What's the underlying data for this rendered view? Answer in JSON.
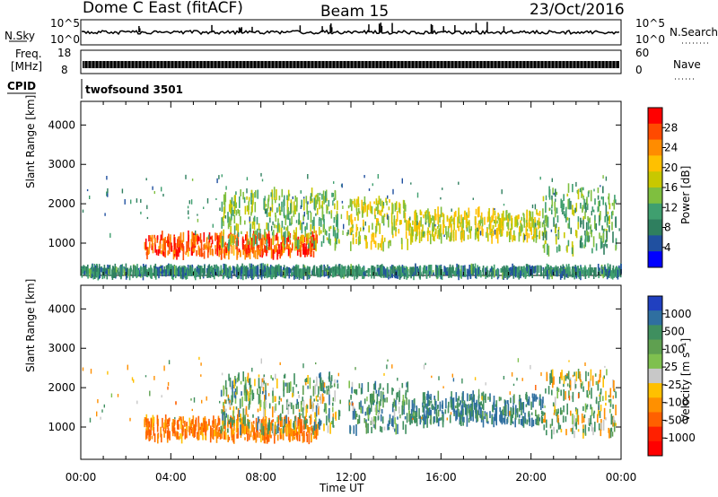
{
  "header": {
    "station": "Dome C East (fitACF)",
    "beam": "Beam 15",
    "date": "23/Oct/2016"
  },
  "top_panels": {
    "nsky_label": "N.Sky",
    "nsky_ticks": [
      "10^5",
      "10^0"
    ],
    "nsearch_label": "N.Search",
    "nsearch_ticks": [
      "10^5",
      "10^0"
    ],
    "freq_label_1": "Freq.",
    "freq_label_2": "[MHz]",
    "freq_ticks": [
      "18",
      "8"
    ],
    "nave_label": "Nave",
    "nave_ticks": [
      "60",
      "0"
    ],
    "cpid_label": "CPID",
    "cpid_value": "twofsound 3501"
  },
  "power_colorbar": {
    "label": "Power [dB]",
    "ticks": [
      "28",
      "24",
      "20",
      "16",
      "12",
      "8",
      "4"
    ],
    "colors": [
      "#ff0000",
      "#ff4a00",
      "#ff8c00",
      "#ffc000",
      "#c8c800",
      "#7fbf3f",
      "#3f9f6f",
      "#2f7f5f",
      "#2050a0",
      "#0000ff"
    ]
  },
  "velocity_colorbar": {
    "label": "Velocity [m s⁻¹]",
    "ticks": [
      "1000",
      "500",
      "100",
      "25",
      "-25",
      "-100",
      "-500",
      "-1000"
    ],
    "colors": [
      "#2040c0",
      "#2f6fa0",
      "#3f8f5f",
      "#5fa050",
      "#7fc04f",
      "#c8c8c8",
      "#ffc000",
      "#ff9000",
      "#ff6000",
      "#ff2000",
      "#ff0000"
    ]
  },
  "chart_data": {
    "type": "heatmap",
    "ylabel": "Slant Range [km]",
    "xlabel": "Time UT",
    "x_ticks": [
      "00:00",
      "04:00",
      "08:00",
      "12:00",
      "16:00",
      "20:00",
      "00:00"
    ],
    "y_ticks": [
      "4000",
      "3000",
      "2000",
      "1000"
    ],
    "ylim": [
      180,
      4600
    ],
    "xlim_hours": [
      0,
      24
    ],
    "power_regions": [
      {
        "t0": 2.8,
        "t1": 10.5,
        "r0": 700,
        "r1": 1200,
        "dB": 28
      },
      {
        "t0": 6.2,
        "t1": 11.5,
        "r0": 900,
        "r1": 2300,
        "dB": 14
      },
      {
        "t0": 11.8,
        "t1": 14.5,
        "r0": 900,
        "r1": 2100,
        "dB": 18
      },
      {
        "t0": 14.5,
        "t1": 20.5,
        "r0": 1100,
        "r1": 1800,
        "dB": 18
      },
      {
        "t0": 20.5,
        "t1": 23.8,
        "r0": 800,
        "r1": 2400,
        "dB": 12
      },
      {
        "t0": 0,
        "t1": 24,
        "r0": 200,
        "r1": 350,
        "dB": 8
      }
    ],
    "velocity_regions": [
      {
        "t0": 2.8,
        "t1": 10.5,
        "r0": 700,
        "r1": 1200,
        "v": -300
      },
      {
        "t0": 6.2,
        "t1": 11.5,
        "r0": 900,
        "r1": 2300,
        "v": 100
      },
      {
        "t0": 11.8,
        "t1": 14.5,
        "r0": 900,
        "r1": 2100,
        "v": 200
      },
      {
        "t0": 14.5,
        "t1": 20.5,
        "r0": 1100,
        "r1": 1800,
        "v": 300
      },
      {
        "t0": 20.5,
        "t1": 23.8,
        "r0": 800,
        "r1": 2400,
        "v": 50
      }
    ]
  }
}
